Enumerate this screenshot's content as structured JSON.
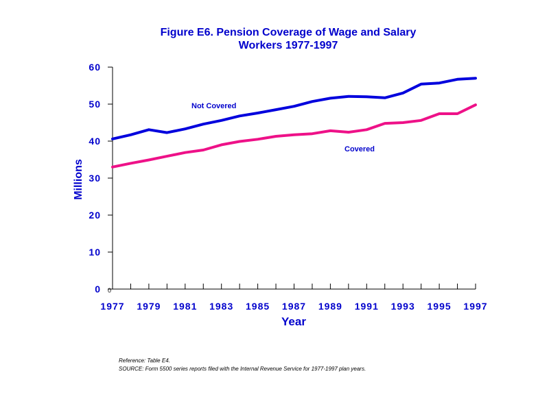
{
  "chart_data": {
    "type": "line",
    "title": "Figure E6.  Pension Coverage of Wage and Salary Workers 1977-1997",
    "title_lines": [
      "Figure E6.  Pension Coverage of Wage and Salary",
      "Workers 1977-1997"
    ],
    "xlabel": "Year",
    "ylabel": "Millions",
    "x": [
      1977,
      1978,
      1979,
      1980,
      1981,
      1982,
      1983,
      1984,
      1985,
      1986,
      1987,
      1988,
      1989,
      1990,
      1991,
      1992,
      1993,
      1994,
      1995,
      1996,
      1997
    ],
    "xlim": [
      1977,
      1997
    ],
    "ylim": [
      0,
      60
    ],
    "x_tick_labels": [
      "1977",
      "1979",
      "1981",
      "1983",
      "1985",
      "1987",
      "1989",
      "1991",
      "1993",
      "1995",
      "1997"
    ],
    "y_tick_labels": [
      "0",
      "10",
      "20",
      "30",
      "40",
      "50",
      "60"
    ],
    "origin_label": "0",
    "grid": false,
    "series": [
      {
        "name": "Not Covered",
        "color": "#0000dd",
        "values": [
          40.6,
          41.7,
          43.1,
          42.3,
          43.3,
          44.6,
          45.6,
          46.8,
          47.6,
          48.5,
          49.4,
          50.7,
          51.6,
          52.1,
          52.0,
          51.7,
          53.0,
          55.4,
          55.7,
          56.7,
          57.0
        ]
      },
      {
        "name": "Covered",
        "color": "#ee1188",
        "values": [
          33.0,
          34.0,
          34.9,
          35.9,
          36.9,
          37.6,
          39.0,
          39.9,
          40.5,
          41.3,
          41.7,
          42.0,
          42.8,
          42.4,
          43.1,
          44.8,
          45.0,
          45.6,
          47.4,
          47.4,
          49.8
        ]
      }
    ]
  },
  "notes": {
    "reference": "Reference: Table E4.",
    "source": "SOURCE: Form  5500 series reports filed with the Internal Revenue Service for 1977-1997 plan years."
  }
}
